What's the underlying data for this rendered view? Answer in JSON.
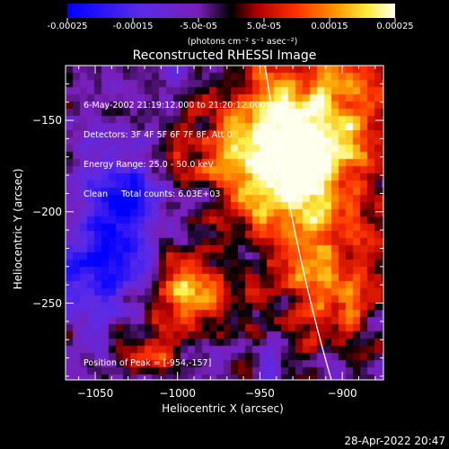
{
  "colorbar": {
    "tick_labels": [
      "-0.00025",
      "-0.00015",
      "-5.0e-05",
      "5.0e-05",
      "0.00015",
      "0.00025"
    ],
    "tick_values": [
      -0.00025,
      -0.00015,
      -5e-05,
      5e-05,
      0.00015,
      0.00025
    ],
    "label": "(photons cm⁻² s⁻¹ asec⁻²)",
    "range": [
      -0.00025,
      0.00025
    ]
  },
  "title": "Reconstructed RHESSI Image",
  "info": {
    "line1": "6-May-2002 21:19:12.000 to 21:20:12.000",
    "line2": "Detectors: 3F 4F 5F 6F 7F 8F, Att 0",
    "line3": "Energy Range: 25.0 - 50.0 keV",
    "line4": "Clean     Total counts: 6.03E+03"
  },
  "peak_text": "Position of Peak = [-954,-157]",
  "axes": {
    "xlabel": "Heliocentric X (arcsec)",
    "ylabel": "Heliocentric Y (arcsec)",
    "xticks": [
      {
        "label": "−1050",
        "value": -1050
      },
      {
        "label": "−1000",
        "value": -1000
      },
      {
        "label": "−950",
        "value": -950
      },
      {
        "label": "−900",
        "value": -900
      }
    ],
    "yticks": [
      {
        "label": "−150",
        "value": -150
      },
      {
        "label": "−200",
        "value": -200
      },
      {
        "label": "−250",
        "value": -250
      }
    ],
    "xlim": [
      -1068,
      -875
    ],
    "ylim": [
      -292,
      -120
    ]
  },
  "timestamp": "28-Apr-2022 20:47",
  "colors": {
    "background": "#000000",
    "limb": "#ffffff",
    "axes": "#ffffff"
  }
}
